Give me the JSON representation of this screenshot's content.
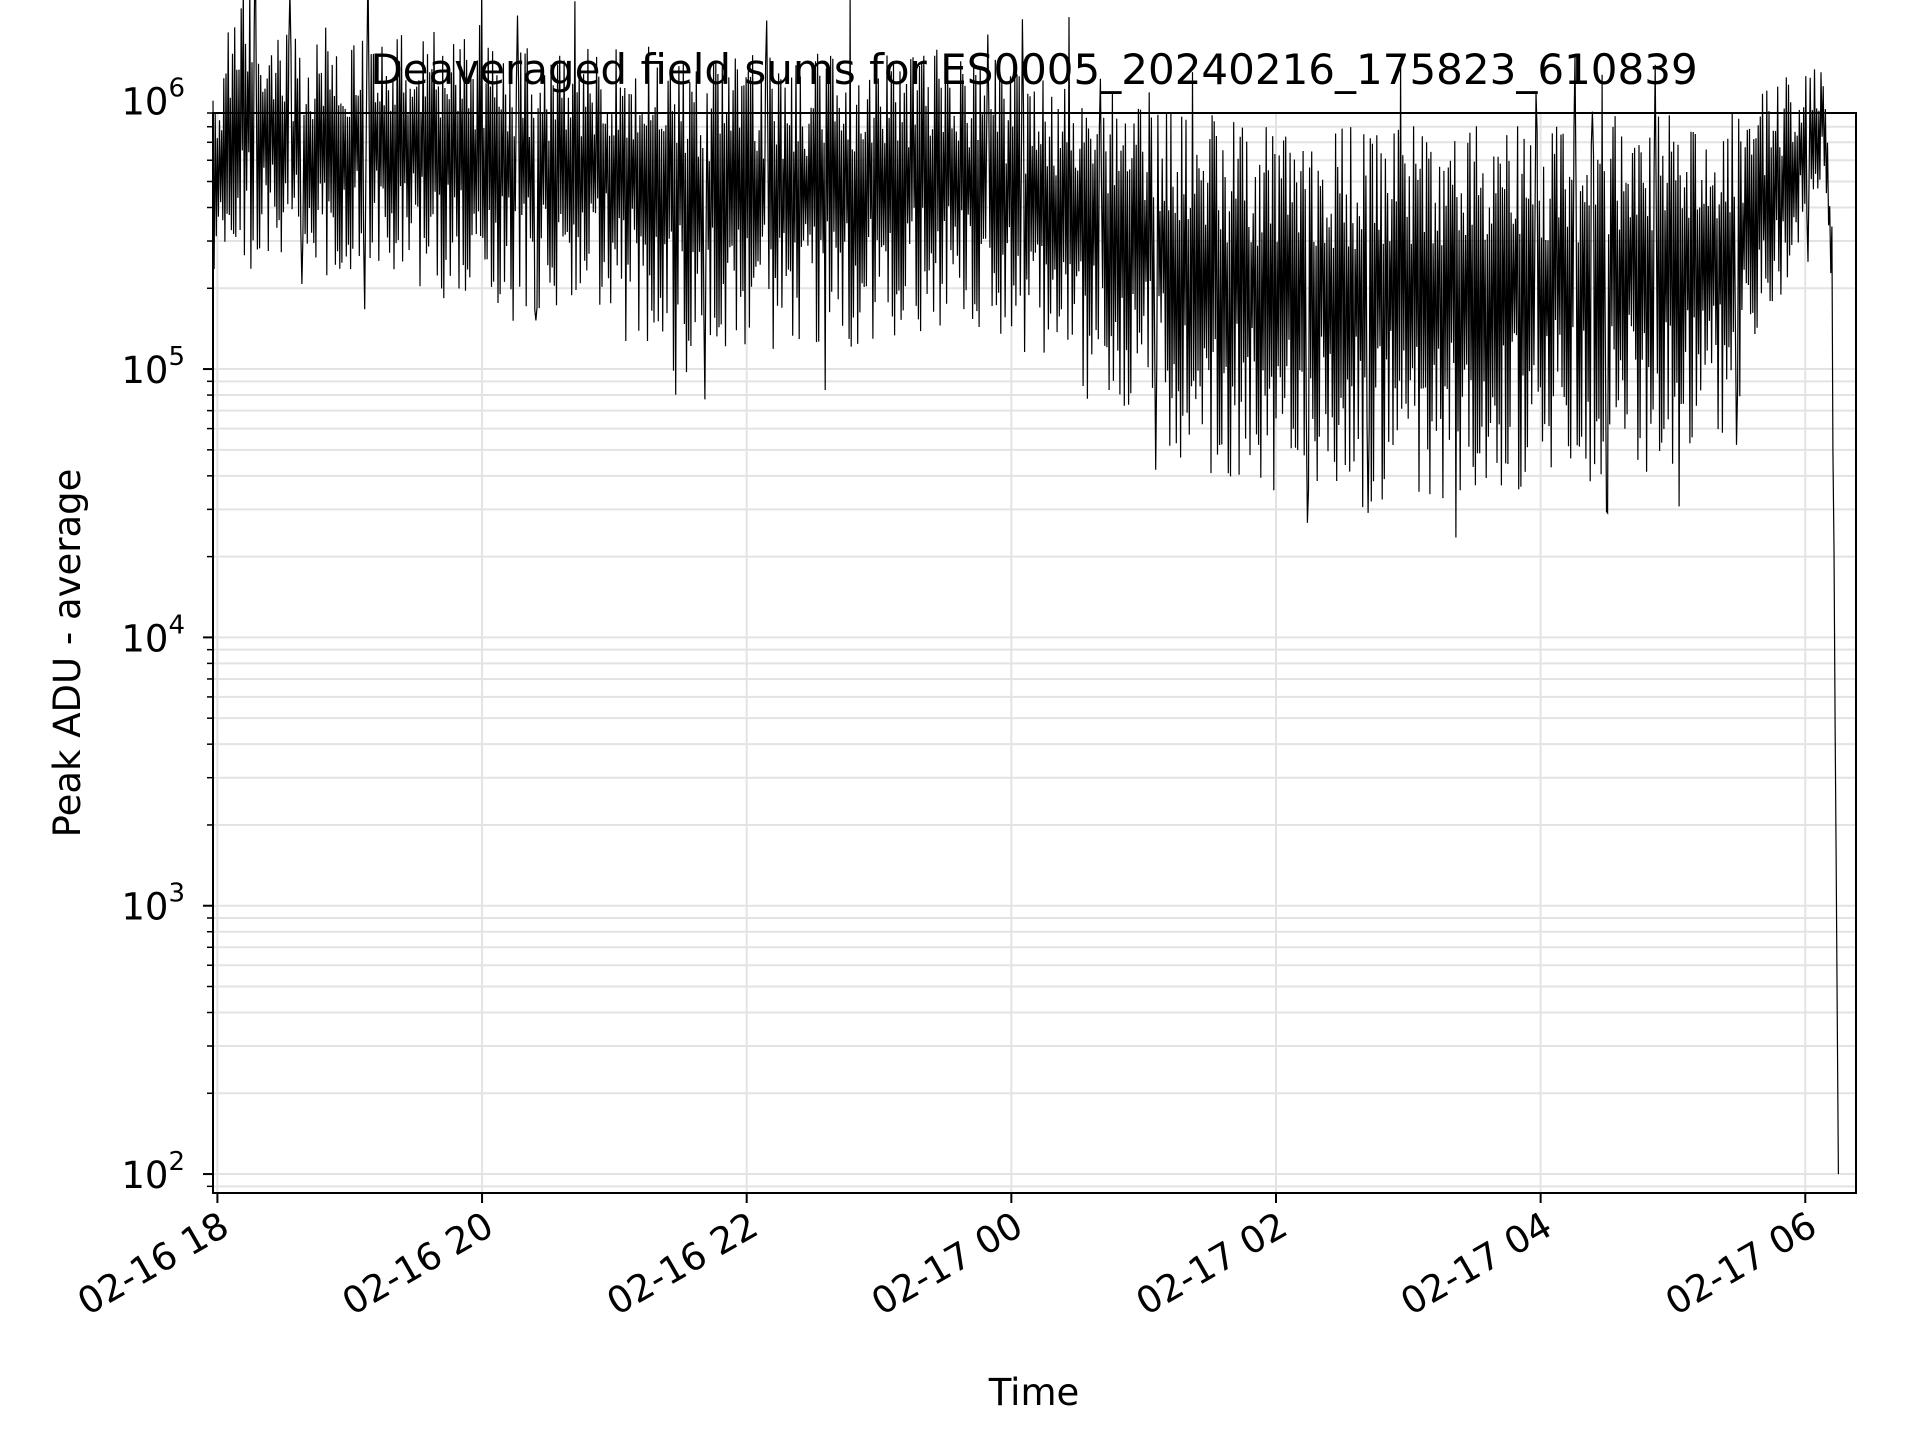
{
  "chart_data": {
    "type": "line",
    "title": "Deaveraged field sums for ES0005_20240216_175823_610839",
    "xlabel": "Time",
    "ylabel": "Peak ADU - average",
    "xscale": "time",
    "yscale": "log",
    "xlim": [
      "02-16 17:58",
      "02-17 06:23"
    ],
    "ylim": [
      85,
      900000
    ],
    "grid": "on (major and minor, light grey)",
    "x_ticks": [
      "02-16 18",
      "02-16 20",
      "02-16 22",
      "02-17 00",
      "02-17 02",
      "02-17 04",
      "02-17 06"
    ],
    "y_ticks": [
      {
        "value": 100,
        "base": "10",
        "exp": "2"
      },
      {
        "value": 1000,
        "base": "10",
        "exp": "3"
      },
      {
        "value": 10000,
        "base": "10",
        "exp": "4"
      },
      {
        "value": 100000,
        "base": "10",
        "exp": "5"
      },
      {
        "value": 1000000,
        "base": "10",
        "exp": "6"
      }
    ],
    "series": [
      {
        "color": "#000000",
        "envelope": {
          "description": "dense oscillating signal; per time point, approximate upper and lower values",
          "x": [
            "02-16 17:58",
            "02-16 18:10",
            "02-16 18:30",
            "02-16 19:00",
            "02-16 19:30",
            "02-16 20:00",
            "02-16 20:30",
            "02-16 21:00",
            "02-16 21:10",
            "02-16 21:30",
            "02-16 22:00",
            "02-16 22:30",
            "02-16 23:00",
            "02-16 23:30",
            "02-16 23:50",
            "02-17 00:00",
            "02-17 00:30",
            "02-17 01:00",
            "02-17 01:10",
            "02-17 01:30",
            "02-17 02:00",
            "02-17 02:30",
            "02-17 03:00",
            "02-17 03:30",
            "02-17 04:00",
            "02-17 04:30",
            "02-17 05:00",
            "02-17 05:20",
            "02-17 05:40",
            "02-17 06:00",
            "02-17 06:08",
            "02-17 06:12",
            "02-17 06:15"
          ],
          "upper": [
            1000000,
            3000000,
            1800000,
            1700000,
            2000000,
            1600000,
            1500000,
            1600000,
            1500000,
            1400000,
            1500000,
            1500000,
            1500000,
            1600000,
            1500000,
            1300000,
            1200000,
            1100000,
            1000000,
            900000,
            800000,
            800000,
            850000,
            900000,
            900000,
            900000,
            900000,
            950000,
            1100000,
            1400000,
            1300000,
            400000,
            100
          ],
          "lower": [
            200000,
            250000,
            200000,
            230000,
            200000,
            180000,
            160000,
            170000,
            130000,
            110000,
            105000,
            110000,
            130000,
            140000,
            140000,
            110000,
            90000,
            65000,
            50000,
            40000,
            35000,
            32000,
            32000,
            33000,
            35000,
            38000,
            40000,
            50000,
            100000,
            300000,
            500000,
            200000,
            100
          ]
        }
      }
    ]
  }
}
